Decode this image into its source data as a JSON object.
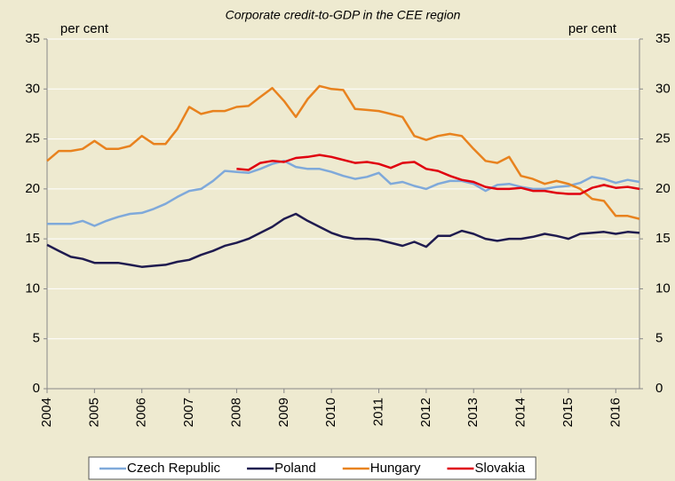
{
  "chart_data": {
    "type": "line",
    "title": "Corporate credit-to-GDP in the CEE region",
    "y_label": "per cent",
    "y2_label": "per cent",
    "x": [
      2004,
      2004.25,
      2004.5,
      2004.75,
      2005,
      2005.25,
      2005.5,
      2005.75,
      2006,
      2006.25,
      2006.5,
      2006.75,
      2007,
      2007.25,
      2007.5,
      2007.75,
      2008,
      2008.25,
      2008.5,
      2008.75,
      2009,
      2009.25,
      2009.5,
      2009.75,
      2010,
      2010.25,
      2010.5,
      2010.75,
      2011,
      2011.25,
      2011.5,
      2011.75,
      2012,
      2012.25,
      2012.5,
      2012.75,
      2013,
      2013.25,
      2013.5,
      2013.75,
      2014,
      2014.25,
      2014.5,
      2014.75,
      2015,
      2015.25,
      2015.5,
      2015.75,
      2016,
      2016.25,
      2016.5
    ],
    "series": [
      {
        "name": "Czech Republic",
        "color": "#7fa9da",
        "values": [
          16.5,
          16.5,
          16.5,
          16.8,
          16.3,
          16.8,
          17.2,
          17.5,
          17.6,
          18.0,
          18.5,
          19.2,
          19.8,
          20.0,
          20.8,
          21.8,
          21.7,
          21.6,
          22.0,
          22.5,
          22.8,
          22.2,
          22.0,
          22.0,
          21.7,
          21.3,
          21.0,
          21.2,
          21.6,
          20.5,
          20.7,
          20.3,
          20.0,
          20.5,
          20.8,
          20.8,
          20.5,
          19.8,
          20.4,
          20.5,
          20.2,
          20.0,
          20.0,
          20.2,
          20.3,
          20.6,
          21.2,
          21.0,
          20.6,
          20.9,
          20.7
        ]
      },
      {
        "name": "Poland",
        "color": "#1f1b4f",
        "values": [
          14.4,
          13.8,
          13.2,
          13.0,
          12.6,
          12.6,
          12.6,
          12.4,
          12.2,
          12.3,
          12.4,
          12.7,
          12.9,
          13.4,
          13.8,
          14.3,
          14.6,
          15.0,
          15.6,
          16.2,
          17.0,
          17.5,
          16.8,
          16.2,
          15.6,
          15.2,
          15.0,
          15.0,
          14.9,
          14.6,
          14.3,
          14.7,
          14.2,
          15.3,
          15.3,
          15.8,
          15.5,
          15.0,
          14.8,
          15.0,
          15.0,
          15.2,
          15.5,
          15.3,
          15.0,
          15.5,
          15.6,
          15.7,
          15.5,
          15.7,
          15.6
        ]
      },
      {
        "name": "Hungary",
        "color": "#e8821e",
        "values": [
          22.8,
          23.8,
          23.8,
          24.0,
          24.8,
          24.0,
          24.0,
          24.3,
          25.3,
          24.5,
          24.5,
          26.0,
          28.2,
          27.5,
          27.8,
          27.8,
          28.2,
          28.3,
          29.2,
          30.1,
          28.8,
          27.2,
          29.0,
          30.3,
          30.0,
          29.9,
          28.0,
          27.9,
          27.8,
          27.5,
          27.2,
          25.3,
          24.9,
          25.3,
          25.5,
          25.3,
          24.0,
          22.8,
          22.6,
          23.2,
          21.3,
          21.0,
          20.5,
          20.8,
          20.5,
          20.0,
          19.0,
          18.8,
          17.3,
          17.3,
          17.0
        ]
      },
      {
        "name": "Slovakia",
        "color": "#e0000f",
        "values": [
          null,
          null,
          null,
          null,
          null,
          null,
          null,
          null,
          null,
          null,
          null,
          null,
          null,
          null,
          null,
          null,
          22.0,
          21.9,
          22.6,
          22.8,
          22.7,
          23.1,
          23.2,
          23.4,
          23.2,
          22.9,
          22.6,
          22.7,
          22.5,
          22.1,
          22.6,
          22.7,
          22.0,
          21.8,
          21.3,
          20.9,
          20.7,
          20.2,
          20.0,
          20.0,
          20.1,
          19.8,
          19.8,
          19.6,
          19.5,
          19.5,
          20.1,
          20.4,
          20.1,
          20.2,
          20.0
        ]
      }
    ],
    "xlim": [
      2004,
      2016.5
    ],
    "xticks": [
      2004,
      2005,
      2006,
      2007,
      2008,
      2009,
      2010,
      2011,
      2012,
      2013,
      2014,
      2015,
      2016
    ],
    "ylim": [
      0,
      35
    ],
    "yticks": [
      0,
      5,
      10,
      15,
      20,
      25,
      30,
      35
    ],
    "y2lim": [
      0,
      35
    ],
    "y2ticks": [
      0,
      5,
      10,
      15,
      20,
      25,
      30,
      35
    ],
    "grid": true,
    "legend": "bottom"
  }
}
